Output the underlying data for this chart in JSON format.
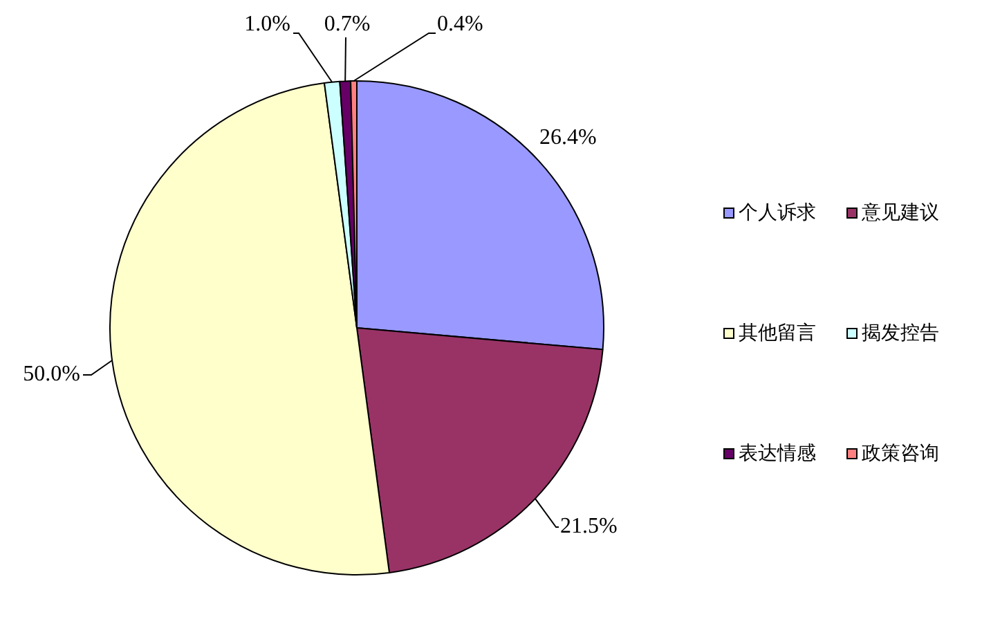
{
  "chart_data": {
    "type": "pie",
    "categories": [
      "个人诉求",
      "意见建议",
      "其他留言",
      "揭发控告",
      "表达情感",
      "政策咨询"
    ],
    "values": [
      26.4,
      21.5,
      50.0,
      1.0,
      0.7,
      0.4
    ],
    "colors": [
      "#9999ff",
      "#993366",
      "#ffffcc",
      "#ccffff",
      "#660066",
      "#ff8080"
    ],
    "value_labels": [
      "26.4%",
      "21.5%",
      "50.0%",
      "1.0%",
      "0.7%",
      "0.4%"
    ],
    "legend": "right"
  }
}
